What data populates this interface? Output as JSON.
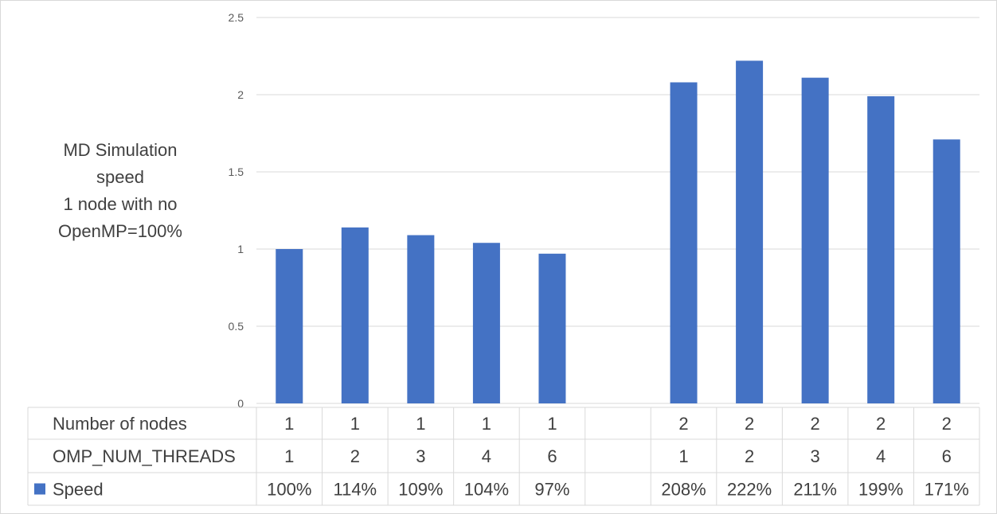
{
  "chart_data": {
    "type": "bar",
    "ylabel_lines": [
      "MD Simulation",
      "speed",
      "1 node with no",
      "OpenMP=100%"
    ],
    "ylim": [
      0,
      2.5
    ],
    "yticks": [
      "0",
      "0.5",
      "1",
      "1.5",
      "2",
      "2.5"
    ],
    "grid": true,
    "categories_rows": [
      {
        "label": "Number of nodes",
        "values": [
          "1",
          "1",
          "1",
          "1",
          "1",
          "",
          "2",
          "2",
          "2",
          "2",
          "2"
        ]
      },
      {
        "label": "OMP_NUM_THREADS",
        "values": [
          "1",
          "2",
          "3",
          "4",
          "6",
          "",
          "1",
          "2",
          "3",
          "4",
          "6"
        ]
      }
    ],
    "series": [
      {
        "name": "Speed",
        "color": "#4472c4",
        "values": [
          1.0,
          1.14,
          1.09,
          1.04,
          0.97,
          null,
          2.08,
          2.22,
          2.11,
          1.99,
          1.71
        ],
        "data_labels": [
          "100%",
          "114%",
          "109%",
          "104%",
          "97%",
          "",
          "208%",
          "222%",
          "211%",
          "199%",
          "171%"
        ]
      }
    ],
    "legend": "data-table"
  }
}
